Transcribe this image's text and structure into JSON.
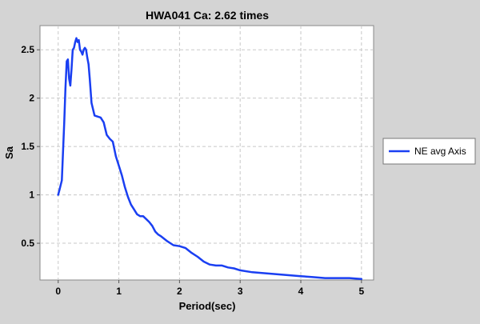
{
  "chart_data": {
    "type": "line",
    "title": "HWA041 Ca: 2.62 times",
    "xlabel": "Period(sec)",
    "ylabel": "Sa",
    "xlim": [
      -0.3,
      5.2
    ],
    "ylim": [
      0.12,
      2.75
    ],
    "xticks": [
      0,
      1,
      2,
      3,
      4,
      5
    ],
    "yticks": [
      0.5,
      1,
      1.5,
      2,
      2.5
    ],
    "xtick_labels": [
      "0",
      "1",
      "2",
      "3",
      "4",
      "5"
    ],
    "ytick_labels": [
      "0.5",
      "1",
      "1.5",
      "2",
      "2.5"
    ],
    "grid": true,
    "legend_position": "right",
    "series": [
      {
        "name": "NE avg Axis",
        "color": "#1a3ff2",
        "x": [
          0,
          0.02,
          0.04,
          0.06,
          0.08,
          0.1,
          0.12,
          0.14,
          0.16,
          0.18,
          0.2,
          0.22,
          0.24,
          0.26,
          0.28,
          0.3,
          0.32,
          0.34,
          0.36,
          0.38,
          0.4,
          0.42,
          0.44,
          0.46,
          0.48,
          0.5,
          0.52,
          0.55,
          0.6,
          0.65,
          0.7,
          0.75,
          0.8,
          0.85,
          0.9,
          0.95,
          1.0,
          1.05,
          1.1,
          1.15,
          1.2,
          1.25,
          1.3,
          1.35,
          1.4,
          1.45,
          1.5,
          1.55,
          1.6,
          1.65,
          1.7,
          1.8,
          1.9,
          2.0,
          2.1,
          2.2,
          2.3,
          2.4,
          2.5,
          2.6,
          2.7,
          2.8,
          2.9,
          3.0,
          3.2,
          3.4,
          3.6,
          3.8,
          4.0,
          4.2,
          4.4,
          4.6,
          4.8,
          5.0
        ],
        "y": [
          1.0,
          1.05,
          1.1,
          1.15,
          1.45,
          1.75,
          2.1,
          2.38,
          2.4,
          2.2,
          2.13,
          2.3,
          2.5,
          2.52,
          2.58,
          2.62,
          2.58,
          2.6,
          2.5,
          2.48,
          2.45,
          2.5,
          2.52,
          2.5,
          2.42,
          2.35,
          2.2,
          1.95,
          1.82,
          1.81,
          1.8,
          1.75,
          1.62,
          1.58,
          1.55,
          1.4,
          1.3,
          1.2,
          1.08,
          0.98,
          0.9,
          0.85,
          0.8,
          0.78,
          0.78,
          0.75,
          0.72,
          0.68,
          0.62,
          0.59,
          0.57,
          0.52,
          0.48,
          0.47,
          0.45,
          0.4,
          0.36,
          0.31,
          0.28,
          0.27,
          0.27,
          0.25,
          0.24,
          0.22,
          0.2,
          0.19,
          0.18,
          0.17,
          0.16,
          0.15,
          0.14,
          0.14,
          0.14,
          0.13
        ]
      }
    ]
  }
}
